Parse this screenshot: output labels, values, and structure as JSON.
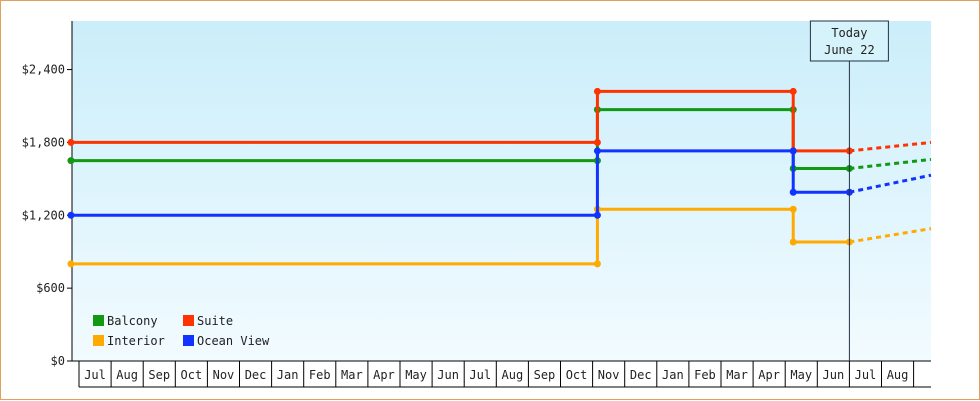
{
  "chart_data": {
    "type": "line",
    "title": "",
    "xlabel": "",
    "ylabel": "",
    "ylim": [
      0,
      2800
    ],
    "y_ticks": [
      {
        "value": 0,
        "label": "$0"
      },
      {
        "value": 600,
        "label": "$600"
      },
      {
        "value": 1200,
        "label": "$1,200"
      },
      {
        "value": 1800,
        "label": "$1,800"
      },
      {
        "value": 2400,
        "label": "$2,400"
      }
    ],
    "months": [
      "Jul",
      "Aug",
      "Sep",
      "Oct",
      "Nov",
      "Dec",
      "Jan",
      "Feb",
      "Mar",
      "Apr",
      "May",
      "Jun",
      "Jul",
      "Aug",
      "Sep",
      "Oct",
      "Nov",
      "Dec",
      "Jan",
      "Feb",
      "Mar",
      "Apr",
      "May",
      "Jun",
      "Jul",
      "Aug"
    ],
    "x_range": [
      -0.25,
      26.55
    ],
    "today": {
      "x": 24.0,
      "label_line1": "Today",
      "label_line2": "June 22"
    },
    "legend_position": "bottom-left",
    "series": [
      {
        "name": "Balcony",
        "color": "#119911",
        "points": [
          [
            -0.25,
            1650
          ],
          [
            16.15,
            1650
          ],
          [
            16.15,
            2070
          ],
          [
            22.25,
            2070
          ],
          [
            22.25,
            1585
          ],
          [
            24.0,
            1585
          ]
        ],
        "projection": [
          [
            24.0,
            1585
          ],
          [
            26.55,
            1660
          ]
        ]
      },
      {
        "name": "Suite",
        "color": "#ff3300",
        "points": [
          [
            -0.25,
            1800
          ],
          [
            16.15,
            1800
          ],
          [
            16.15,
            2220
          ],
          [
            22.25,
            2220
          ],
          [
            22.25,
            1730
          ],
          [
            24.0,
            1730
          ]
        ],
        "projection": [
          [
            24.0,
            1730
          ],
          [
            26.55,
            1800
          ]
        ]
      },
      {
        "name": "Interior",
        "color": "#ffaa00",
        "points": [
          [
            -0.25,
            800
          ],
          [
            16.15,
            800
          ],
          [
            16.15,
            1250
          ],
          [
            22.25,
            1250
          ],
          [
            22.25,
            980
          ],
          [
            24.0,
            980
          ]
        ],
        "projection": [
          [
            24.0,
            980
          ],
          [
            26.55,
            1090
          ]
        ]
      },
      {
        "name": "Ocean View",
        "color": "#1133ff",
        "points": [
          [
            -0.25,
            1200
          ],
          [
            16.15,
            1200
          ],
          [
            16.15,
            1730
          ],
          [
            22.25,
            1730
          ],
          [
            22.25,
            1390
          ],
          [
            24.0,
            1390
          ]
        ],
        "projection": [
          [
            24.0,
            1390
          ],
          [
            26.55,
            1530
          ]
        ]
      }
    ]
  }
}
